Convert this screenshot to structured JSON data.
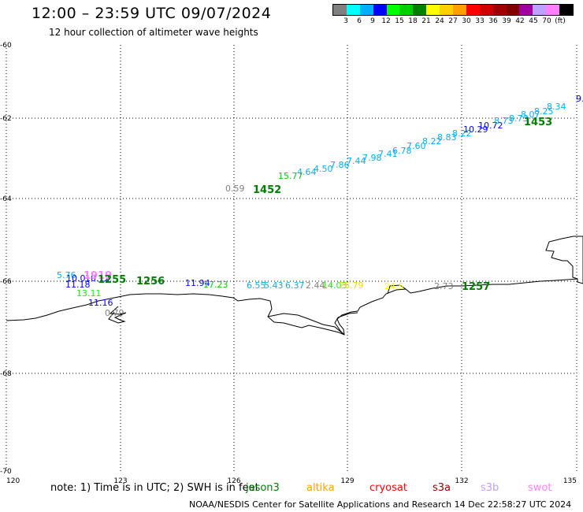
{
  "header": {
    "title": "12:00 – 23:59 UTC 09/07/2024",
    "subtitle": "12 hour collection of altimeter wave heights"
  },
  "colorbar": {
    "colors": [
      "#808080",
      "#00ffff",
      "#00b0ff",
      "#0000ff",
      "#00ff00",
      "#00d000",
      "#008000",
      "#ffff00",
      "#ffd000",
      "#ffa000",
      "#ff0000",
      "#d00000",
      "#a00000",
      "#800000",
      "#a000a0",
      "#c0a0ff",
      "#ff80ff",
      "#000000"
    ],
    "labels": [
      "3",
      "6",
      "9",
      "12",
      "15",
      "18",
      "21",
      "24",
      "27",
      "30",
      "33",
      "36",
      "39",
      "42",
      "45",
      "70",
      "(ft)"
    ]
  },
  "map": {
    "lon_ticks": [
      "120",
      "123",
      "126",
      "129",
      "132",
      "135"
    ],
    "lat_ticks": [
      "-60",
      "-62",
      "-64",
      "-66",
      "-68",
      "-70"
    ],
    "lon_range": [
      120,
      135
    ],
    "lat_range": [
      -60,
      -70
    ],
    "gridlines": "dotted",
    "observations": [
      {
        "text": "0.59",
        "color": "#808080"
      },
      {
        "text": "15.77",
        "color": "#00d000"
      },
      {
        "text": "4.64",
        "color": "#00b0ff"
      },
      {
        "text": "4.50",
        "color": "#00b0ff"
      },
      {
        "text": "7.86",
        "color": "#00b0ff"
      },
      {
        "text": "7.44",
        "color": "#00b0ff"
      },
      {
        "text": "7.98",
        "color": "#00b0ff"
      },
      {
        "text": "7.41",
        "color": "#00b0ff"
      },
      {
        "text": "6.78",
        "color": "#00b0ff"
      },
      {
        "text": "7.60",
        "color": "#00b0ff"
      },
      {
        "text": "8.22",
        "color": "#00b0ff"
      },
      {
        "text": "8.83",
        "color": "#00b0ff"
      },
      {
        "text": "8.22",
        "color": "#00b0ff"
      },
      {
        "text": "10.29",
        "color": "#0000ff"
      },
      {
        "text": "10.72",
        "color": "#0000ff"
      },
      {
        "text": "8.73",
        "color": "#00b0ff"
      },
      {
        "text": "8.73",
        "color": "#00b0ff"
      },
      {
        "text": "8.07",
        "color": "#00b0ff"
      },
      {
        "text": "8.25",
        "color": "#00b0ff"
      },
      {
        "text": "8.34",
        "color": "#00b0ff"
      },
      {
        "text": "9.",
        "color": "#0000ff"
      },
      {
        "text": "5.76",
        "color": "#00b0ff"
      },
      {
        "text": "10.0",
        "color": "#0000ff"
      },
      {
        "text": "10.12",
        "color": "#0000ff"
      },
      {
        "text": "11.18",
        "color": "#0000ff"
      },
      {
        "text": "13.11",
        "color": "#00ff00"
      },
      {
        "text": "11.16",
        "color": "#0000ff"
      },
      {
        "text": "0.79",
        "color": "#808080"
      },
      {
        "text": "11.94",
        "color": "#0000ff"
      },
      {
        "text": "17.23",
        "color": "#00d000"
      },
      {
        "text": "6.55",
        "color": "#00b0ff"
      },
      {
        "text": "5.43",
        "color": "#00b0ff"
      },
      {
        "text": "6.37",
        "color": "#00b0ff"
      },
      {
        "text": "2.44",
        "color": "#808080"
      },
      {
        "text": "14.03",
        "color": "#00ff00"
      },
      {
        "text": "26.79",
        "color": "#ffd000"
      },
      {
        "text": "24.5",
        "color": "#ffff00"
      },
      {
        "text": "2.73",
        "color": "#808080"
      }
    ],
    "pass_labels": [
      {
        "text": "1452",
        "color": "#008000"
      },
      {
        "text": "1453",
        "color": "#008000"
      },
      {
        "text": "1919",
        "color": "#ff80ff"
      },
      {
        "text": "1255",
        "color": "#008000"
      },
      {
        "text": "1256",
        "color": "#008000"
      },
      {
        "text": "1257",
        "color": "#008000"
      }
    ]
  },
  "footer": {
    "note": "note:  1) Time is in UTC; 2) SWH is in feet",
    "satellites": [
      {
        "name": "jason3",
        "color": "#008000"
      },
      {
        "name": "altika",
        "color": "#ffa000"
      },
      {
        "name": "cryosat",
        "color": "#ff0000"
      },
      {
        "name": "s3a",
        "color": "#a00000"
      },
      {
        "name": "s3b",
        "color": "#c0a0ff"
      },
      {
        "name": "swot",
        "color": "#ff80ff"
      }
    ],
    "credit": "NOAA/NESDIS Center for Satellite Applications and Research    14 Dec 22:58:27 UTC 2024"
  }
}
